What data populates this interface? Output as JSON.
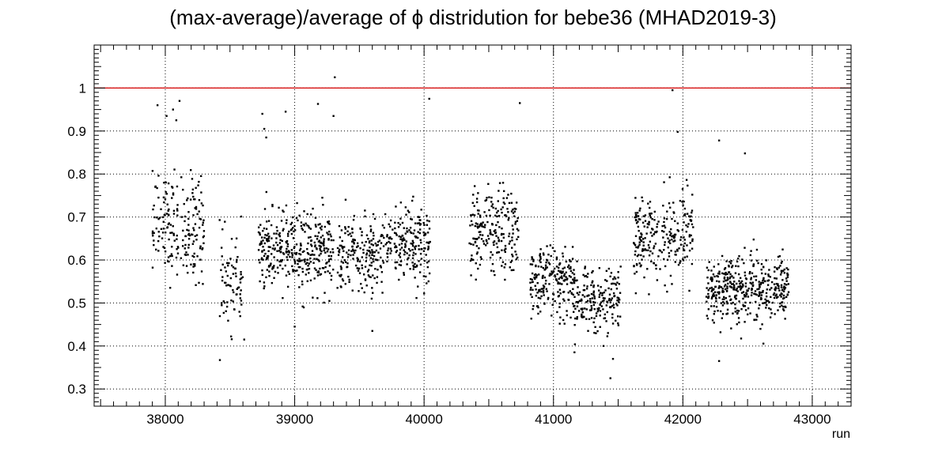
{
  "chart_data": {
    "type": "scatter",
    "title": "(max-average)/average of ϕ distridution for bebe36 (MHAD2019-3)",
    "xlabel": "run",
    "ylabel": "",
    "xlim": [
      37450,
      43300
    ],
    "ylim": [
      0.26,
      1.1
    ],
    "x_ticks": [
      38000,
      39000,
      40000,
      41000,
      42000,
      43000
    ],
    "x_tick_labels": [
      "38000",
      "39000",
      "40000",
      "41000",
      "42000",
      "43000"
    ],
    "y_ticks": [
      0.3,
      0.4,
      0.5,
      0.6,
      0.7,
      0.8,
      0.9,
      1.0
    ],
    "y_tick_labels": [
      "0.3",
      "0.4",
      "0.5",
      "0.6",
      "0.7",
      "0.8",
      "0.9",
      "1"
    ],
    "grid": true,
    "reference_line": {
      "y": 1.0,
      "color": "#d40000"
    },
    "marker_color": "#000000",
    "clusters": [
      {
        "x_range": [
          37900,
          38300
        ],
        "center": 0.68,
        "spread": 0.08,
        "count": 190
      },
      {
        "x_range": [
          38420,
          38600
        ],
        "center": 0.55,
        "spread": 0.07,
        "count": 75
      },
      {
        "x_range": [
          38720,
          39300
        ],
        "center": 0.62,
        "spread": 0.06,
        "count": 360
      },
      {
        "x_range": [
          39330,
          39680
        ],
        "center": 0.61,
        "spread": 0.055,
        "count": 190
      },
      {
        "x_range": [
          39680,
          40050
        ],
        "center": 0.64,
        "spread": 0.06,
        "count": 200
      },
      {
        "x_range": [
          40350,
          40730
        ],
        "center": 0.66,
        "spread": 0.07,
        "count": 210
      },
      {
        "x_range": [
          40820,
          41150
        ],
        "center": 0.55,
        "spread": 0.05,
        "count": 200
      },
      {
        "x_range": [
          41150,
          41520
        ],
        "center": 0.51,
        "spread": 0.05,
        "count": 200
      },
      {
        "x_range": [
          41620,
          42080
        ],
        "center": 0.65,
        "spread": 0.07,
        "count": 240
      },
      {
        "x_range": [
          42180,
          42820
        ],
        "center": 0.53,
        "spread": 0.05,
        "count": 420
      }
    ],
    "outliers": [
      {
        "x": 37940,
        "y": 0.96
      },
      {
        "x": 38010,
        "y": 0.935
      },
      {
        "x": 38060,
        "y": 0.95
      },
      {
        "x": 38085,
        "y": 0.925
      },
      {
        "x": 38110,
        "y": 0.97
      },
      {
        "x": 38750,
        "y": 0.94
      },
      {
        "x": 38765,
        "y": 0.905
      },
      {
        "x": 38780,
        "y": 0.885
      },
      {
        "x": 38930,
        "y": 0.945
      },
      {
        "x": 39180,
        "y": 0.963
      },
      {
        "x": 39300,
        "y": 0.935
      },
      {
        "x": 39310,
        "y": 1.025
      },
      {
        "x": 40040,
        "y": 0.975
      },
      {
        "x": 40740,
        "y": 0.965
      },
      {
        "x": 41920,
        "y": 0.995
      },
      {
        "x": 41960,
        "y": 0.898
      },
      {
        "x": 42280,
        "y": 0.878
      },
      {
        "x": 42480,
        "y": 0.848
      },
      {
        "x": 41440,
        "y": 0.325
      },
      {
        "x": 41460,
        "y": 0.37
      },
      {
        "x": 42280,
        "y": 0.365
      },
      {
        "x": 39600,
        "y": 0.435
      },
      {
        "x": 38610,
        "y": 0.415
      },
      {
        "x": 39000,
        "y": 0.445
      }
    ]
  }
}
